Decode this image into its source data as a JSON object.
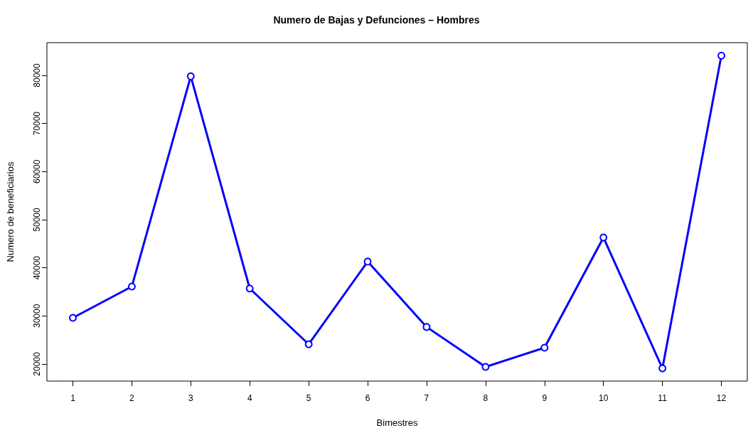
{
  "chart_data": {
    "type": "line",
    "title": "Numero de Bajas y Defunciones – Hombres",
    "xlabel": "Bimestres",
    "ylabel": "Numero de beneficiarios",
    "x": [
      1,
      2,
      3,
      4,
      5,
      6,
      7,
      8,
      9,
      10,
      11,
      12
    ],
    "series": [
      {
        "color": "#0000ff",
        "values": [
          29600,
          36100,
          79800,
          35700,
          24100,
          41300,
          27700,
          19400,
          23400,
          46300,
          19100,
          84100
        ]
      }
    ],
    "xlim": [
      0.56,
      12.44
    ],
    "xticks": [
      1,
      2,
      3,
      4,
      5,
      6,
      7,
      8,
      9,
      10,
      11,
      12
    ],
    "ylim": [
      16450,
      86800
    ],
    "yticks": [
      20000,
      30000,
      40000,
      50000,
      60000,
      70000,
      80000
    ],
    "marker": "circle",
    "line_style": "solid"
  }
}
